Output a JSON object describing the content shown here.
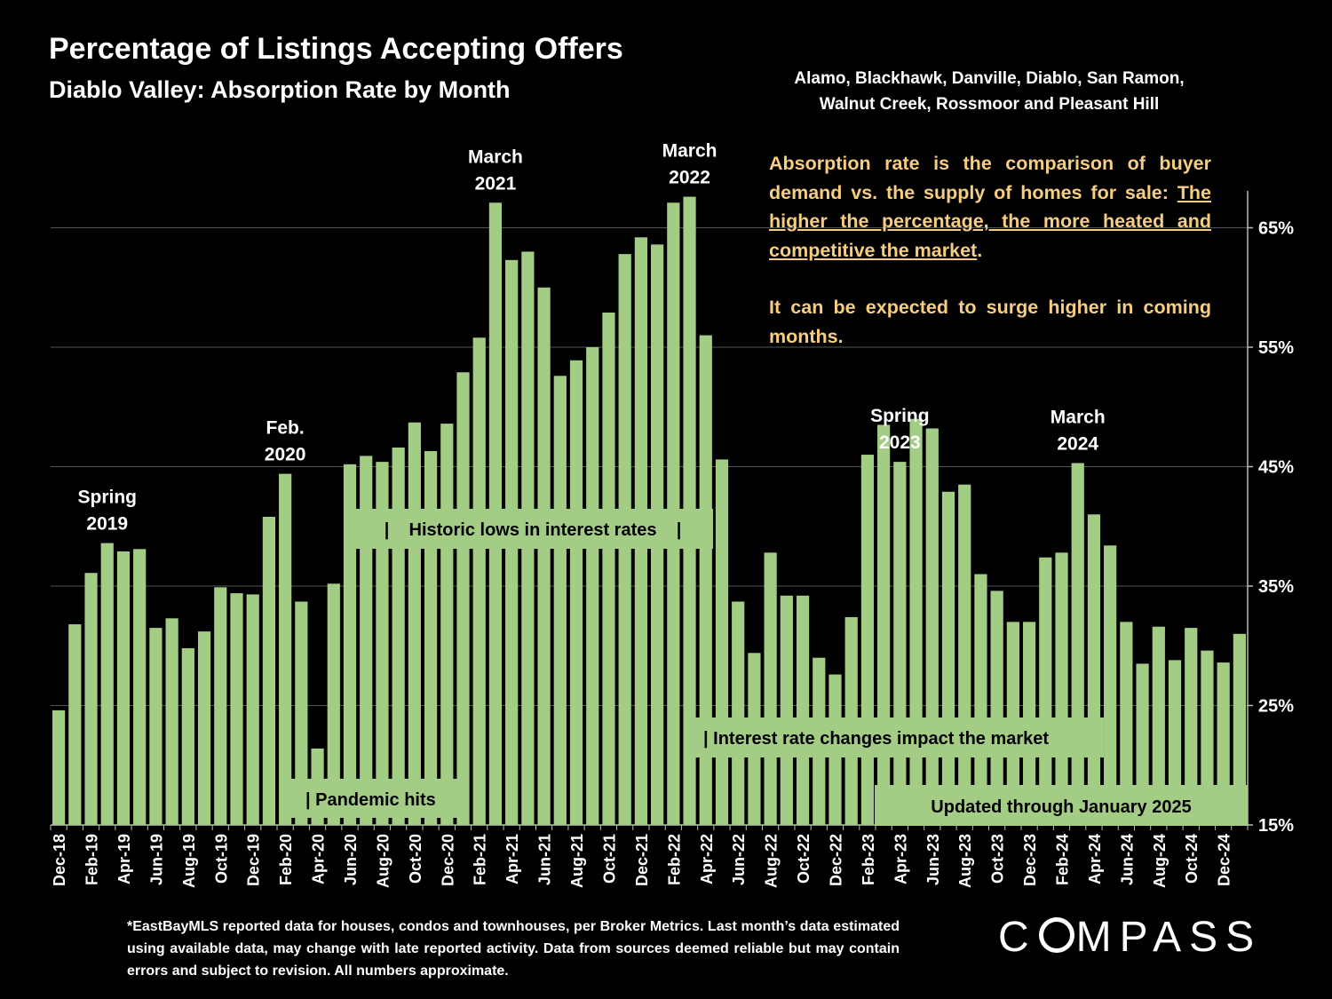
{
  "header": {
    "title": "Percentage of Listings Accepting Offers",
    "subtitle": "Diablo Valley:  Absorption Rate by Month",
    "region_line1": "Alamo, Blackhawk, Danville, Diablo, San Ramon,",
    "region_line2": "Walnut Creek, Rossmoor and Pleasant Hill"
  },
  "explanation": {
    "part1": "Absorption rate is the comparison of buyer demand vs. the supply of homes for sale: ",
    "underlined": "The higher the percentage, the more heated and competitive the market",
    "part2": ".",
    "para2": "It can be expected to surge higher in coming months."
  },
  "footnote": "*EastBayMLS reported data for houses, condos and townhouses, per Broker Metrics. Last month’s data estimated using available data, may change with late reported activity. Data from sources deemed reliable but may contain errors and subject to revision. All numbers approximate.",
  "logo": {
    "before": "C",
    "after": "MPASS"
  },
  "colors": {
    "bar": "#a3cc85",
    "background": "#000000",
    "explain_text": "#f7cd80",
    "grid": "#555555"
  },
  "chart_data": {
    "type": "bar",
    "title": "Percentage of Listings Accepting Offers",
    "subtitle": "Diablo Valley:  Absorption Rate by Month",
    "y_axis_position": "right",
    "ylim": [
      15,
      68
    ],
    "yticks": [
      15,
      25,
      35,
      45,
      55,
      65
    ],
    "ytick_labels": [
      "15%",
      "25%",
      "35%",
      "45%",
      "55%",
      "65%"
    ],
    "grid": true,
    "categories": [
      "Dec-18",
      "Jan-19",
      "Feb-19",
      "Mar-19",
      "Apr-19",
      "May-19",
      "Jun-19",
      "Jul-19",
      "Aug-19",
      "Sep-19",
      "Oct-19",
      "Nov-19",
      "Dec-19",
      "Jan-20",
      "Feb-20",
      "Mar-20",
      "Apr-20",
      "May-20",
      "Jun-20",
      "Jul-20",
      "Aug-20",
      "Sep-20",
      "Oct-20",
      "Nov-20",
      "Dec-20",
      "Jan-21",
      "Feb-21",
      "Mar-21",
      "Apr-21",
      "May-21",
      "Jun-21",
      "Jul-21",
      "Aug-21",
      "Sep-21",
      "Oct-21",
      "Nov-21",
      "Dec-21",
      "Jan-22",
      "Feb-22",
      "Mar-22",
      "Apr-22",
      "May-22",
      "Jun-22",
      "Jul-22",
      "Aug-22",
      "Sep-22",
      "Oct-22",
      "Nov-22",
      "Dec-22",
      "Jan-23",
      "Feb-23",
      "Mar-23",
      "Apr-23",
      "May-23",
      "Jun-23",
      "Jul-23",
      "Aug-23",
      "Sep-23",
      "Oct-23",
      "Nov-23",
      "Dec-23",
      "Jan-24",
      "Feb-24",
      "Mar-24",
      "Apr-24",
      "May-24",
      "Jun-24",
      "Jul-24",
      "Aug-24",
      "Sep-24",
      "Oct-24",
      "Nov-24",
      "Dec-24",
      "Jan-25"
    ],
    "visible_tick_labels": [
      "Dec-18",
      "Feb-19",
      "Apr-19",
      "Jun-19",
      "Aug-19",
      "Oct-19",
      "Dec-19",
      "Feb-20",
      "Apr-20",
      "Jun-20",
      "Aug-20",
      "Oct-20",
      "Dec-20",
      "Feb-21",
      "Apr-21",
      "Jun-21",
      "Aug-21",
      "Oct-21",
      "Dec-21",
      "Feb-22",
      "Apr-22",
      "Jun-22",
      "Aug-22",
      "Oct-22",
      "Dec-22",
      "Feb-23",
      "Apr-23",
      "Jun-23",
      "Aug-23",
      "Oct-23",
      "Dec-23",
      "Feb-24",
      "Apr-24",
      "Jun-24",
      "Aug-24",
      "Oct-24",
      "Dec-24"
    ],
    "values": [
      24.6,
      31.8,
      36.1,
      38.6,
      37.9,
      38.1,
      31.5,
      32.3,
      29.8,
      31.2,
      34.9,
      34.4,
      34.3,
      40.8,
      44.4,
      33.7,
      21.4,
      35.2,
      45.2,
      45.9,
      45.4,
      46.6,
      48.7,
      46.3,
      48.6,
      52.9,
      55.8,
      67.1,
      62.3,
      63.0,
      60.0,
      52.6,
      53.9,
      55.0,
      57.9,
      62.8,
      64.2,
      63.6,
      67.1,
      67.6,
      56.0,
      45.6,
      33.7,
      29.4,
      37.8,
      34.2,
      34.2,
      29.0,
      27.6,
      32.4,
      46.0,
      48.5,
      45.4,
      49.0,
      48.2,
      42.9,
      43.5,
      36.0,
      34.6,
      32.0,
      32.0,
      37.4,
      37.8,
      45.3,
      41.0,
      38.4,
      32.0,
      28.5,
      31.6,
      28.8,
      31.5,
      29.6,
      28.6,
      31.0
    ],
    "annotations": [
      {
        "text_line1": "Spring",
        "text_line2": "2019",
        "category": "Mar-19"
      },
      {
        "text_line1": "Feb.",
        "text_line2": "2020",
        "category": "Feb-20"
      },
      {
        "text_line1": "March",
        "text_line2": "2021",
        "category": "Mar-21"
      },
      {
        "text_line1": "March",
        "text_line2": "2022",
        "category": "Mar-22"
      },
      {
        "text_line1": "Spring",
        "text_line2": "2023",
        "category": "Apr-23"
      },
      {
        "text_line1": "March",
        "text_line2": "2024",
        "category": "Mar-24"
      }
    ],
    "callouts": {
      "pandemic": "| Pandemic hits",
      "historic": "|    Historic lows in interest rates    |",
      "rates": "| Interest rate changes impact the market",
      "updated": "Updated through January 2025"
    }
  }
}
